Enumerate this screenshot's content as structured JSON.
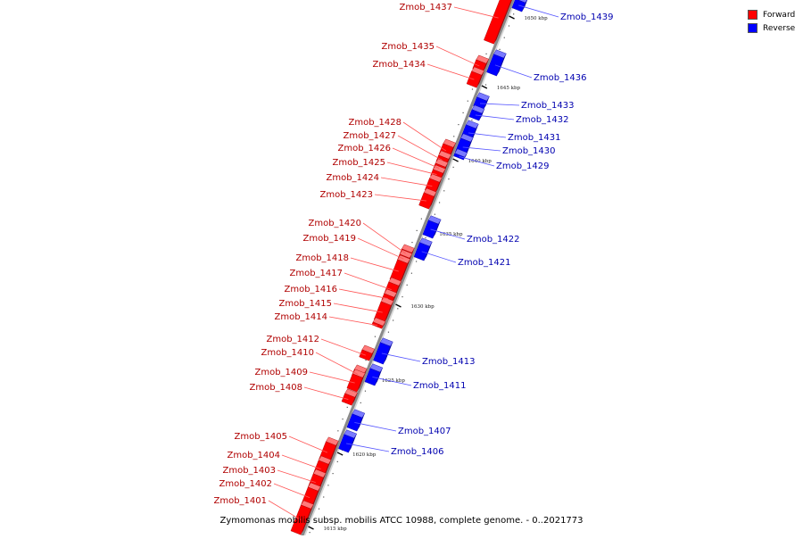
{
  "legend": [
    {
      "label": "Forward",
      "color": "#ff0000"
    },
    {
      "label": "Reverse",
      "color": "#0000ff"
    }
  ],
  "caption": "Zymomonas mobilis subsp. mobilis ATCC 10988, complete genome. - 0..2021773",
  "ticks": [
    "1650 kbp",
    "1645 kbp",
    "1640 kbp",
    "1635 kbp",
    "1630 kbp",
    "1625 kbp",
    "1620 kbp",
    "1615 kbp"
  ],
  "genes": [
    {
      "name": "Zmob_1437",
      "strand": "forward"
    },
    {
      "name": "Zmob_1439",
      "strand": "reverse"
    },
    {
      "name": "Zmob_1435",
      "strand": "forward"
    },
    {
      "name": "Zmob_1434",
      "strand": "forward"
    },
    {
      "name": "Zmob_1436",
      "strand": "reverse"
    },
    {
      "name": "Zmob_1433",
      "strand": "reverse"
    },
    {
      "name": "Zmob_1432",
      "strand": "reverse"
    },
    {
      "name": "Zmob_1431",
      "strand": "reverse"
    },
    {
      "name": "Zmob_1430",
      "strand": "reverse"
    },
    {
      "name": "Zmob_1429",
      "strand": "reverse"
    },
    {
      "name": "Zmob_1428",
      "strand": "forward"
    },
    {
      "name": "Zmob_1427",
      "strand": "forward"
    },
    {
      "name": "Zmob_1426",
      "strand": "forward"
    },
    {
      "name": "Zmob_1425",
      "strand": "forward"
    },
    {
      "name": "Zmob_1424",
      "strand": "forward"
    },
    {
      "name": "Zmob_1423",
      "strand": "forward"
    },
    {
      "name": "Zmob_1422",
      "strand": "reverse"
    },
    {
      "name": "Zmob_1421",
      "strand": "reverse"
    },
    {
      "name": "Zmob_1420",
      "strand": "forward"
    },
    {
      "name": "Zmob_1419",
      "strand": "forward"
    },
    {
      "name": "Zmob_1418",
      "strand": "forward"
    },
    {
      "name": "Zmob_1417",
      "strand": "forward"
    },
    {
      "name": "Zmob_1416",
      "strand": "forward"
    },
    {
      "name": "Zmob_1415",
      "strand": "forward"
    },
    {
      "name": "Zmob_1414",
      "strand": "forward"
    },
    {
      "name": "Zmob_1413",
      "strand": "reverse"
    },
    {
      "name": "Zmob_1412",
      "strand": "forward"
    },
    {
      "name": "Zmob_1410",
      "strand": "forward"
    },
    {
      "name": "Zmob_1411",
      "strand": "reverse"
    },
    {
      "name": "Zmob_1409",
      "strand": "forward"
    },
    {
      "name": "Zmob_1408",
      "strand": "forward"
    },
    {
      "name": "Zmob_1407",
      "strand": "reverse"
    },
    {
      "name": "Zmob_1406",
      "strand": "reverse"
    },
    {
      "name": "Zmob_1405",
      "strand": "forward"
    },
    {
      "name": "Zmob_1404",
      "strand": "forward"
    },
    {
      "name": "Zmob_1403",
      "strand": "forward"
    },
    {
      "name": "Zmob_1402",
      "strand": "forward"
    },
    {
      "name": "Zmob_1401",
      "strand": "forward"
    }
  ]
}
